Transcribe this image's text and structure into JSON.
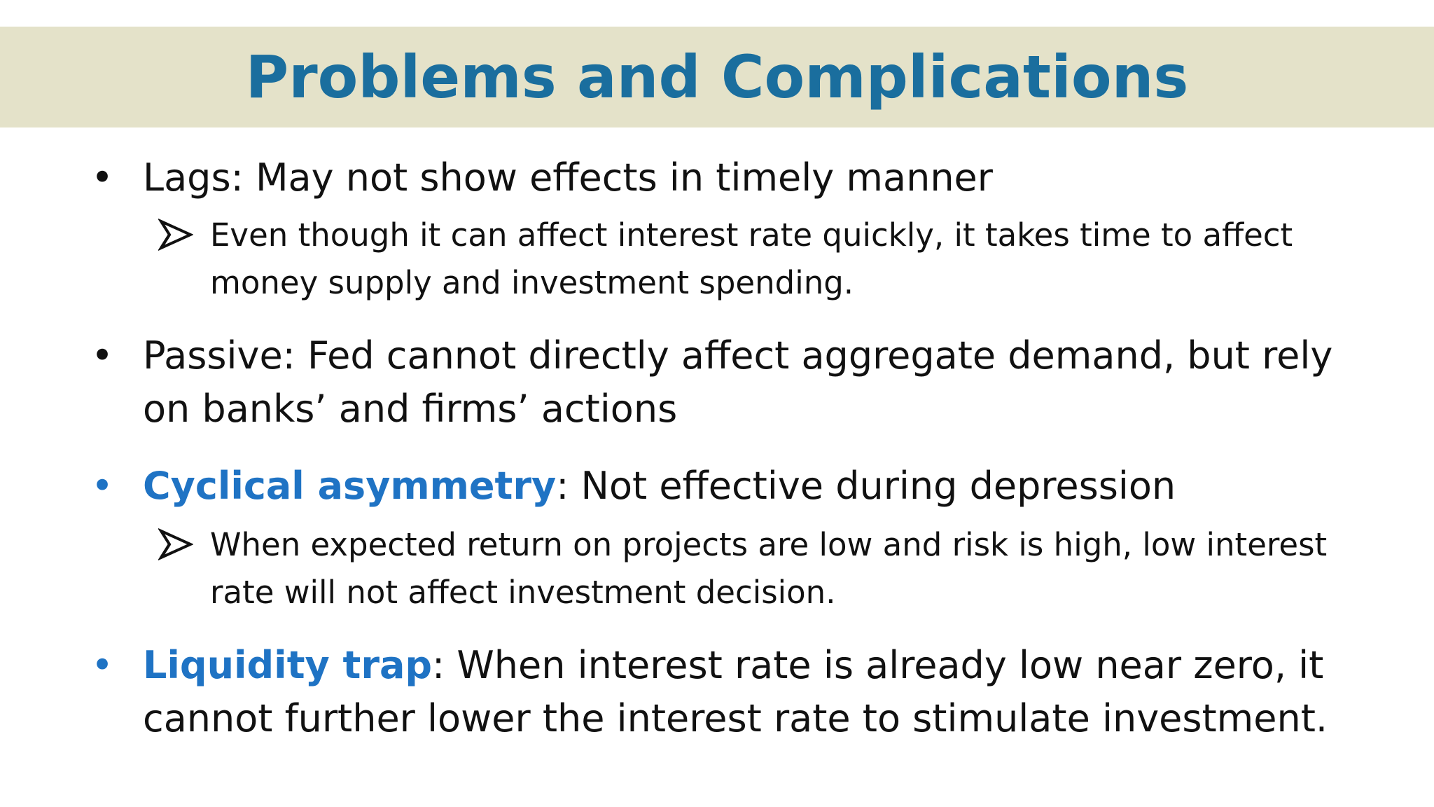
{
  "slide": {
    "title": "Problems and Complications",
    "bullets": [
      {
        "term": "",
        "text": "Lags: May not show effects in timely manner",
        "sub": "Even though it can affect interest rate quickly, it takes time to affect money supply and investment spending."
      },
      {
        "term": "",
        "text": "Passive: Fed cannot directly affect aggregate demand, but rely on banks’ and firms’ actions",
        "sub": ""
      },
      {
        "term": "Cyclical asymmetry",
        "text": ": Not effective during depression",
        "sub": "When expected return on projects are low and risk is high, low interest rate will not affect investment decision."
      },
      {
        "term": "Liquidity trap",
        "text": ": When interest rate is already low near zero, it cannot further lower the interest rate to stimulate investment.",
        "sub": ""
      }
    ],
    "colors": {
      "title": "#1a6e9e",
      "title_band": "#e4e2c9",
      "term": "#1f73c4",
      "body_text": "#111111"
    }
  }
}
